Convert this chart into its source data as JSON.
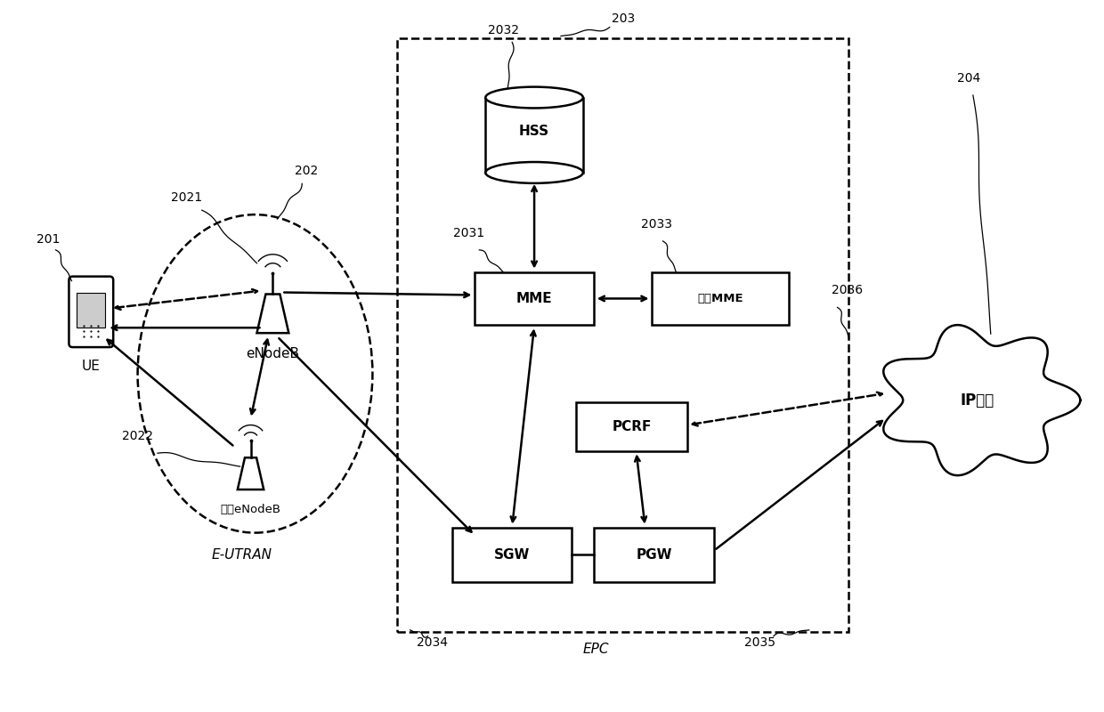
{
  "bg_color": "#ffffff",
  "fig_width": 12.4,
  "fig_height": 8.0,
  "labels": {
    "UE": "UE",
    "eNodeB": "eNodeB",
    "other_eNodeB": "其它eNodeB",
    "E_UTRAN": "E-UTRAN",
    "HSS": "HSS",
    "MME": "MME",
    "other_MME": "其它MME",
    "PCRF": "PCRF",
    "SGW": "SGW",
    "PGW": "PGW",
    "EPC": "EPC",
    "IP": "IP业务"
  },
  "ref_labels": {
    "201": "201",
    "202": "202",
    "203": "203",
    "204": "204",
    "2021": "2021",
    "2022": "2022",
    "2031": "2031",
    "2032": "2032",
    "2033": "2033",
    "2034": "2034",
    "2035": "2035",
    "2036": "2036"
  }
}
